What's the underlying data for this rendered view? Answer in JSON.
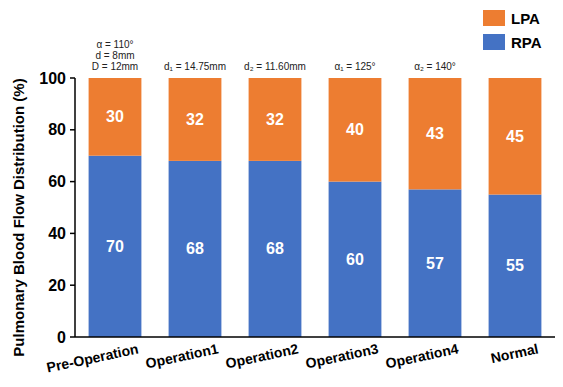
{
  "chart_data": {
    "type": "bar",
    "stacked": true,
    "data_labels": true,
    "grid": false,
    "legend": "top-right",
    "y_label": "Pulmonary Blood Flow Distribution (%)",
    "categories": [
      "Pre-Operation",
      "Operation1",
      "Operation2",
      "Operation3",
      "Operation4",
      "Normal"
    ],
    "series": [
      {
        "name": "RPA",
        "color": "#4472c4",
        "values": [
          70,
          68,
          68,
          60,
          57,
          55
        ]
      },
      {
        "name": "LPA",
        "color": "#ed7d31",
        "values": [
          30,
          32,
          32,
          40,
          43,
          45
        ]
      }
    ],
    "ylim": [
      0,
      100
    ],
    "yticks": [
      0,
      20,
      40,
      60,
      80,
      100
    ],
    "annotations": [
      {
        "category": "Pre-Operation",
        "text": [
          "α = 110°",
          "d = 8mm",
          "D = 12mm"
        ]
      },
      {
        "category": "Operation1",
        "text": [
          "d₁ = 14.75mm"
        ]
      },
      {
        "category": "Operation2",
        "text": [
          "d₂ = 11.60mm"
        ]
      },
      {
        "category": "Operation3",
        "text": [
          "α₁ = 125°"
        ]
      },
      {
        "category": "Operation4",
        "text": [
          "α₂ = 140°"
        ]
      }
    ]
  }
}
